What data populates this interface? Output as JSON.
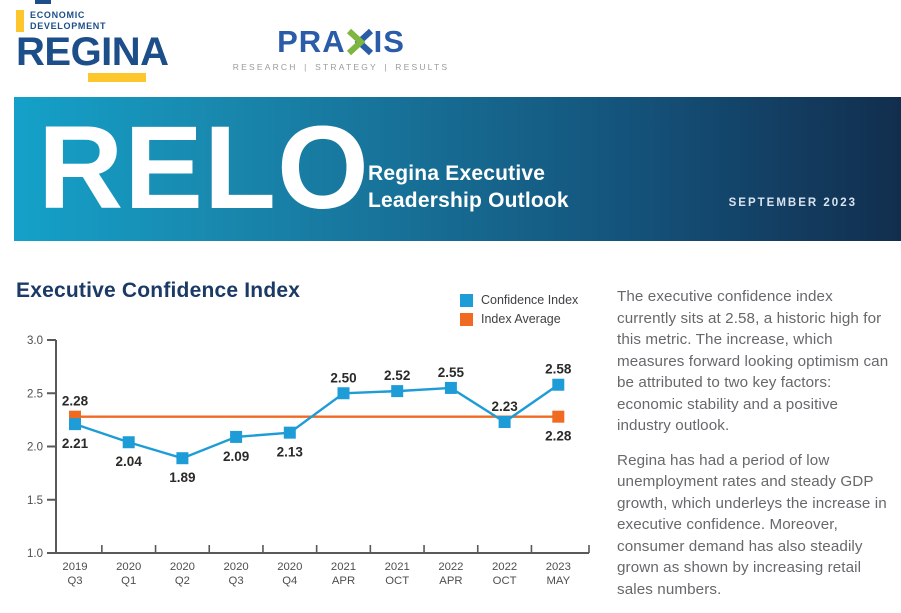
{
  "header": {
    "edr_logo": {
      "line1": "ECONOMIC",
      "line2": "DEVELOPMENT",
      "wordmark": "REGINA"
    },
    "praxis_logo": {
      "wordmark_left": "PRA",
      "wordmark_right": "IS",
      "tagline": "RESEARCH | STRATEGY | RESULTS"
    }
  },
  "banner": {
    "acronym": "RELO",
    "title_line1": "Regina Executive",
    "title_line2": "Leadership Outlook",
    "date": "SEPTEMBER 2023"
  },
  "section": {
    "title": "Executive Confidence Index"
  },
  "colors": {
    "brand_navy": "#1C4E89",
    "heading_navy": "#1B3A66",
    "brand_yellow": "#FCC62C",
    "praxis_blue": "#2A5CA8",
    "praxis_green": "#7EB63F",
    "banner_gradient_start": "#14A1C9",
    "banner_gradient_end": "#122E4E",
    "chart_blue": "#1E9CD7",
    "chart_orange": "#F16A21",
    "axis_gray": "#58595B"
  },
  "chart_data": {
    "type": "line",
    "title": "Executive Confidence Index",
    "categories": [
      [
        "2019",
        "Q3"
      ],
      [
        "2020",
        "Q1"
      ],
      [
        "2020",
        "Q2"
      ],
      [
        "2020",
        "Q3"
      ],
      [
        "2020",
        "Q4"
      ],
      [
        "2021",
        "APR"
      ],
      [
        "2021",
        "OCT"
      ],
      [
        "2022",
        "APR"
      ],
      [
        "2022",
        "OCT"
      ],
      [
        "2023",
        "MAY"
      ]
    ],
    "series": [
      {
        "name": "Confidence Index",
        "type": "line-with-square-markers",
        "color": "#1E9CD7",
        "values": [
          2.21,
          2.04,
          1.89,
          2.09,
          2.13,
          2.5,
          2.52,
          2.55,
          2.23,
          2.58
        ],
        "value_label_positions": [
          "below",
          "below",
          "below",
          "below",
          "below",
          "above",
          "above",
          "above",
          "above",
          "above"
        ]
      },
      {
        "name": "Index Average",
        "type": "constant-line-with-endpoint-markers",
        "color": "#F16A21",
        "value": 2.28,
        "first_label_position": "above",
        "last_label_position": "below"
      }
    ],
    "ylim": [
      1.0,
      3.0
    ],
    "yticks": [
      "3.0",
      "2.5",
      "2.0",
      "1.5",
      "1.0"
    ],
    "grid": false,
    "legend_position": "top-right"
  },
  "commentary": {
    "p1": "The executive confidence index currently sits at 2.58, a historic high for this metric. The increase, which measures forward looking optimism can be attributed to two key factors: economic stability and a positive industry outlook.",
    "p2": "Regina has had a period of low unemployment rates and steady GDP growth, which underleys the increase in executive confidence. Moreover, consumer demand has also steadily grown as shown by increasing retail sales numbers."
  }
}
